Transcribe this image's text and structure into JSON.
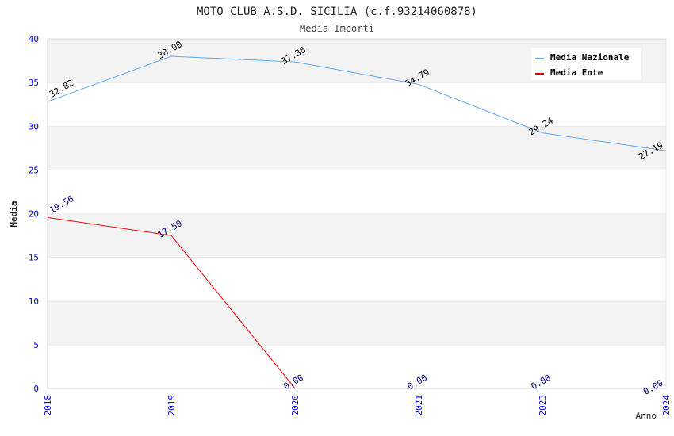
{
  "chart_data": {
    "type": "line",
    "title": "MOTO CLUB A.S.D. SICILIA (c.f.93214060878)",
    "subtitle": "Media Importi",
    "xlabel": "Anno",
    "ylabel": "Media",
    "ylim": [
      0,
      40
    ],
    "yticks": [
      "0",
      "5",
      "10",
      "15",
      "20",
      "25",
      "30",
      "35",
      "40"
    ],
    "categories": [
      "2018",
      "2019",
      "2020",
      "2021",
      "2023",
      "2024"
    ],
    "legend_position": "top-right",
    "grid": true,
    "series": [
      {
        "name": "Media Nazionale",
        "color": "#5fa8f0",
        "label_color": "#000000",
        "values": [
          32.82,
          38.0,
          37.36,
          34.79,
          29.24,
          27.19
        ],
        "labels": [
          "32.82",
          "38.00",
          "37.36",
          "34.79",
          "29.24",
          "27.19"
        ],
        "line_points": 6
      },
      {
        "name": "Media Ente",
        "color": "#ff0000",
        "label_color": "#000080",
        "values": [
          19.56,
          17.5,
          0.0,
          0.0,
          0.0,
          0.0
        ],
        "labels": [
          "19.56",
          "17.50",
          "0.00",
          "0.00",
          "0.00",
          "0.00"
        ],
        "line_points": 3
      }
    ]
  }
}
